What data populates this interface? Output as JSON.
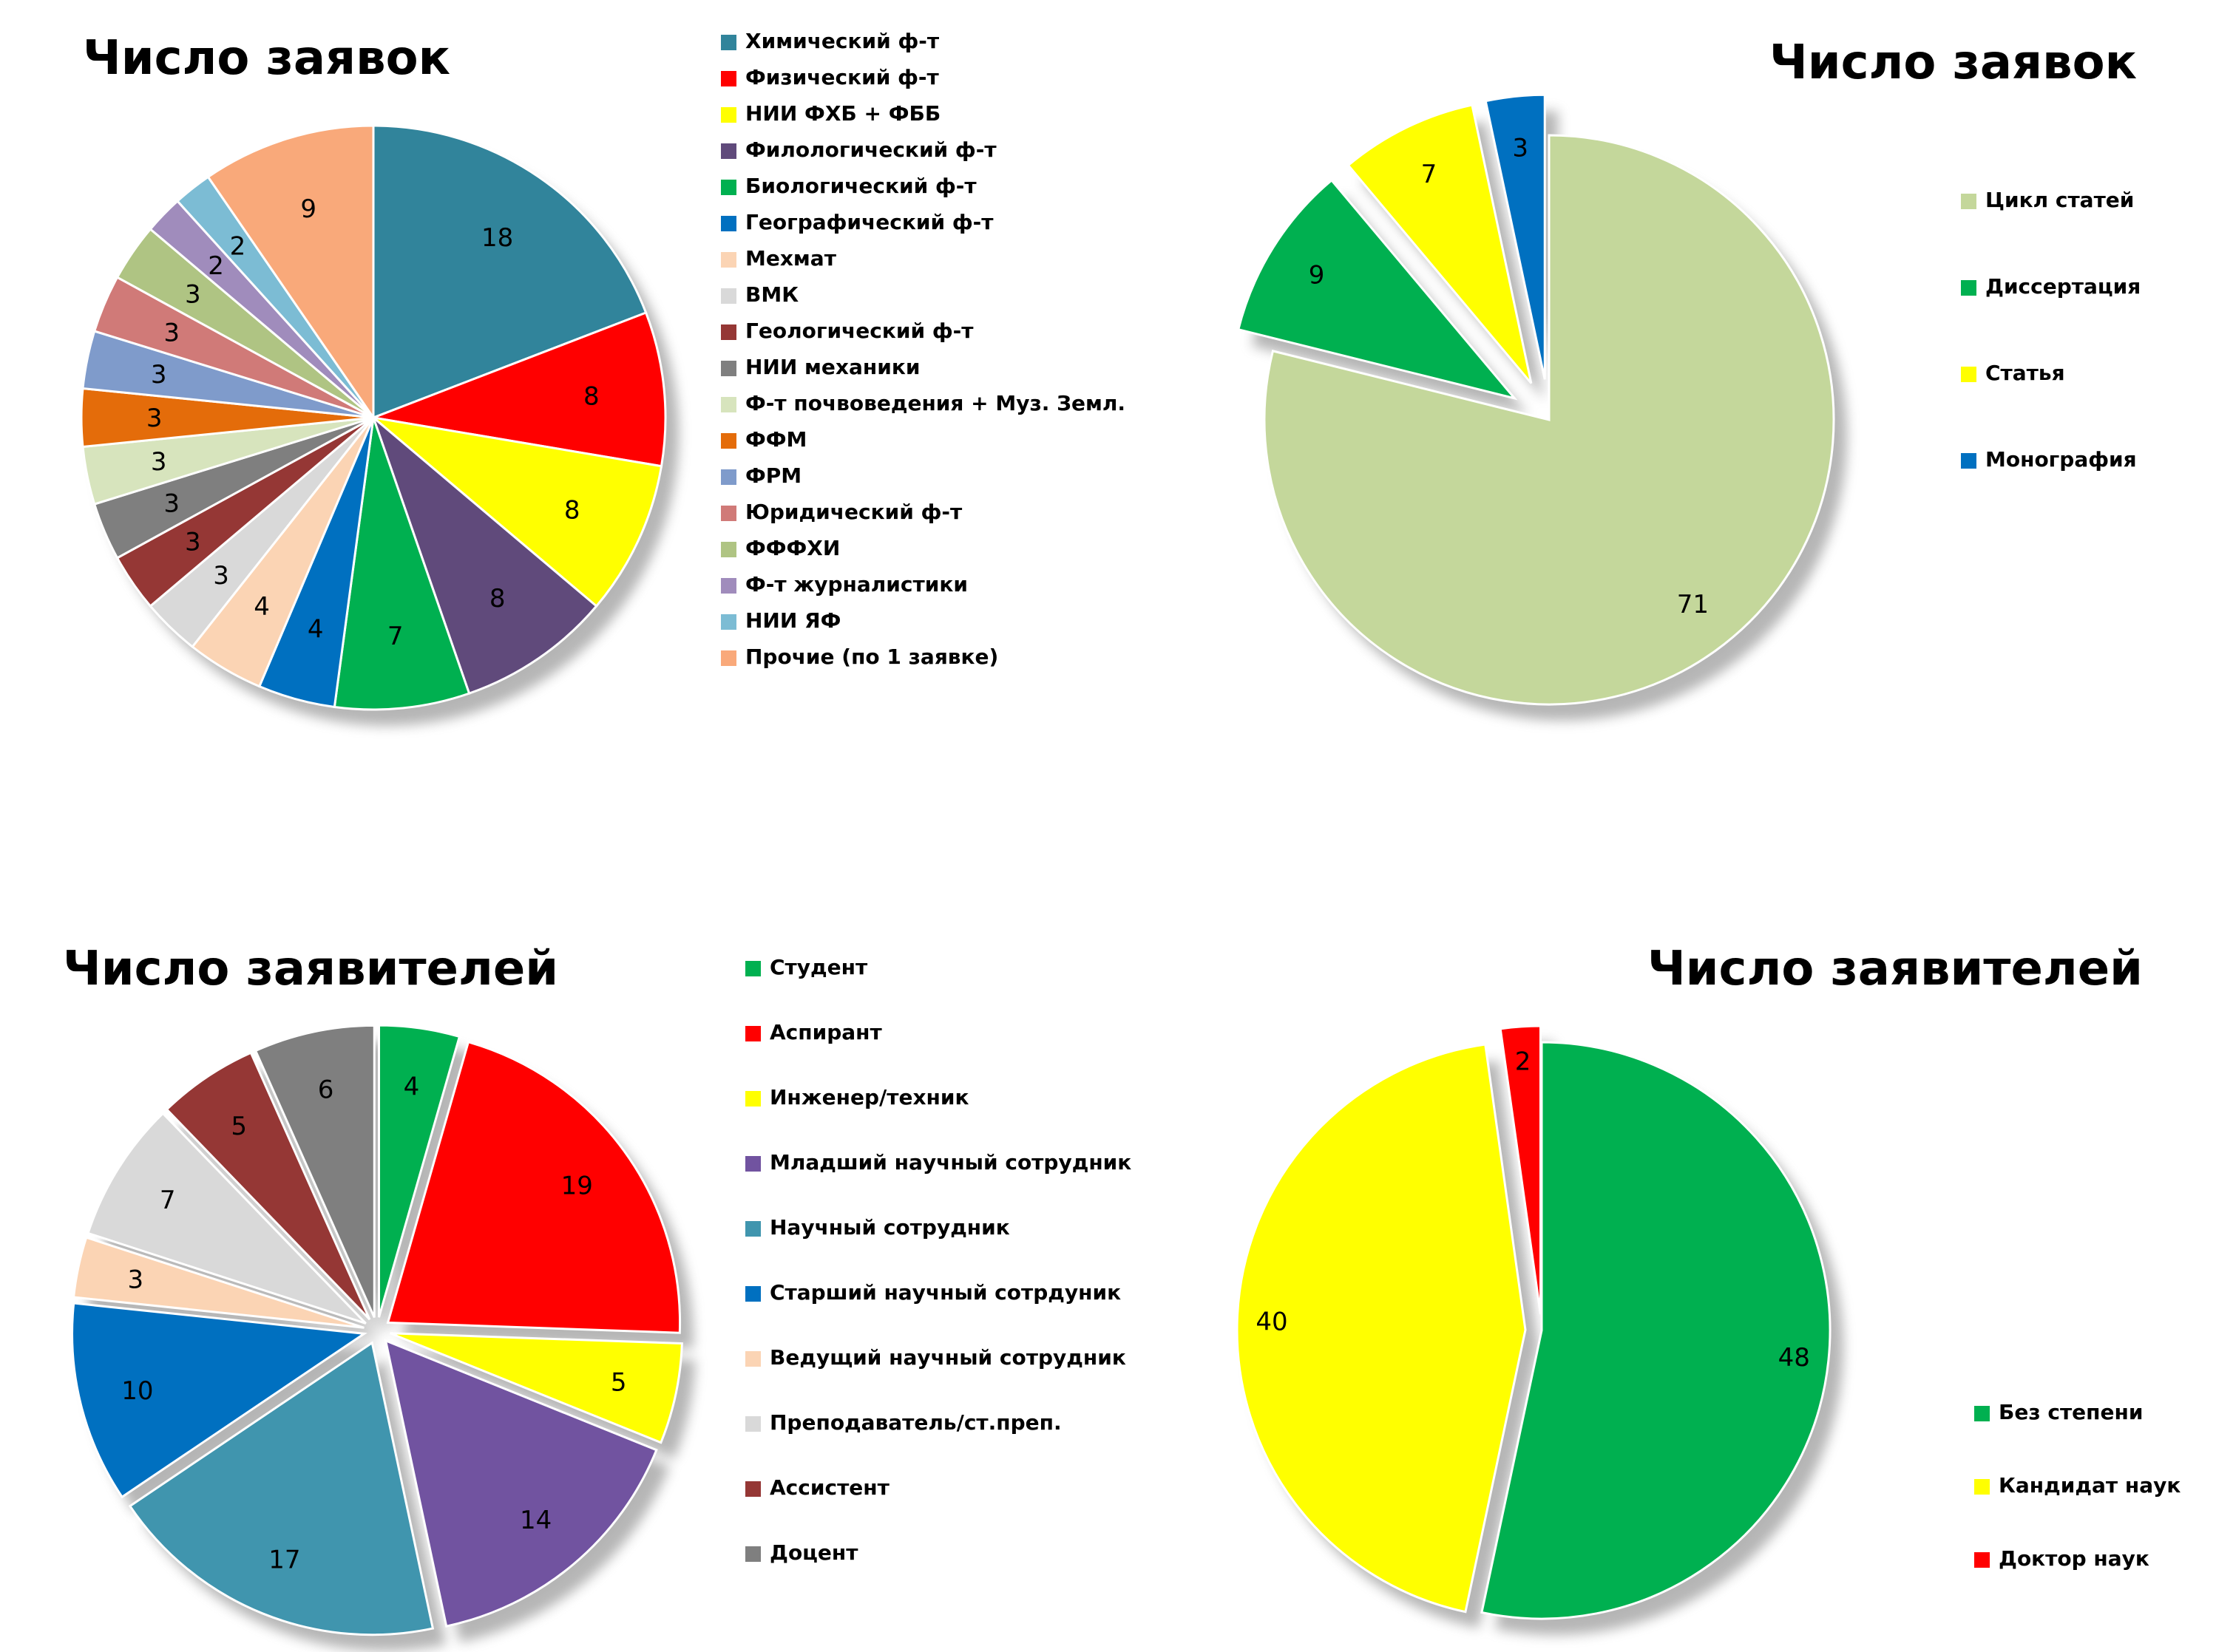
{
  "chart_data": [
    {
      "type": "pie",
      "title": "Число заявок",
      "categories": [
        "Химический ф-т",
        "Физический ф-т",
        "НИИ ФХБ + ФББ",
        "Филологический ф-т",
        "Биологический ф-т",
        "Географический ф-т",
        "Мехмат",
        "ВМК",
        "Геологический ф-т",
        "НИИ механики",
        "Ф-т почвоведения + Муз. Земл.",
        "ФФМ",
        "ФРМ",
        "Юридический ф-т",
        "ФФФХИ",
        "Ф-т журналистики",
        "НИИ ЯФ",
        "Прочие (по 1 заявке)"
      ],
      "values": [
        18,
        8,
        8,
        8,
        7,
        4,
        4,
        3,
        3,
        3,
        3,
        3,
        3,
        3,
        3,
        2,
        2,
        9
      ],
      "colors": [
        "#31849B",
        "#FF0000",
        "#FFFF00",
        "#604A7B",
        "#00B050",
        "#0070C0",
        "#FBD4B4",
        "#D9D9D9",
        "#953735",
        "#7F7F7F",
        "#D7E4BD",
        "#E46C0A",
        "#7F9BCB",
        "#D07A78",
        "#AFC483",
        "#A08CBC",
        "#7CBCD4",
        "#F9A97A"
      ],
      "legend_position": "right",
      "exploded_slices": []
    },
    {
      "type": "pie",
      "title": "Число заявок",
      "categories": [
        "Цикл статей",
        "Диссертация",
        "Статья",
        "Монография"
      ],
      "values": [
        71,
        9,
        7,
        3
      ],
      "colors": [
        "#C4D79B",
        "#00B050",
        "#FFFF00",
        "#0070C0"
      ],
      "legend_position": "right",
      "exploded_slices": [
        1,
        2,
        3
      ]
    },
    {
      "type": "pie",
      "title": "Число заявителей",
      "categories": [
        "Студент",
        "Аспирант",
        "Инженер/техник",
        "Младший научный сотрудник",
        "Научный сотрудник",
        "Старший научный сотрдуник",
        "Ведущий научный сотрудник",
        "Преподаватель/ст.преп.",
        "Ассистент",
        "Доцент"
      ],
      "values": [
        4,
        19,
        5,
        14,
        17,
        10,
        3,
        7,
        5,
        6
      ],
      "colors": [
        "#00B050",
        "#FF0000",
        "#FFFF00",
        "#7153A0",
        "#4095AE",
        "#0070C0",
        "#FBD4B4",
        "#D9D9D9",
        "#953735",
        "#7F7F7F"
      ],
      "legend_position": "right",
      "exploded_slices": [
        0,
        1,
        2,
        3,
        4,
        5,
        6,
        7,
        8,
        9
      ]
    },
    {
      "type": "pie",
      "title": "Число заявителей",
      "categories": [
        "Без степени",
        "Кандидат наук",
        "Доктор наук"
      ],
      "values": [
        48,
        40,
        2
      ],
      "colors": [
        "#00B050",
        "#FFFF00",
        "#FF0000"
      ],
      "legend_position": "bottom-right",
      "exploded_slices": [
        1,
        2
      ]
    }
  ]
}
